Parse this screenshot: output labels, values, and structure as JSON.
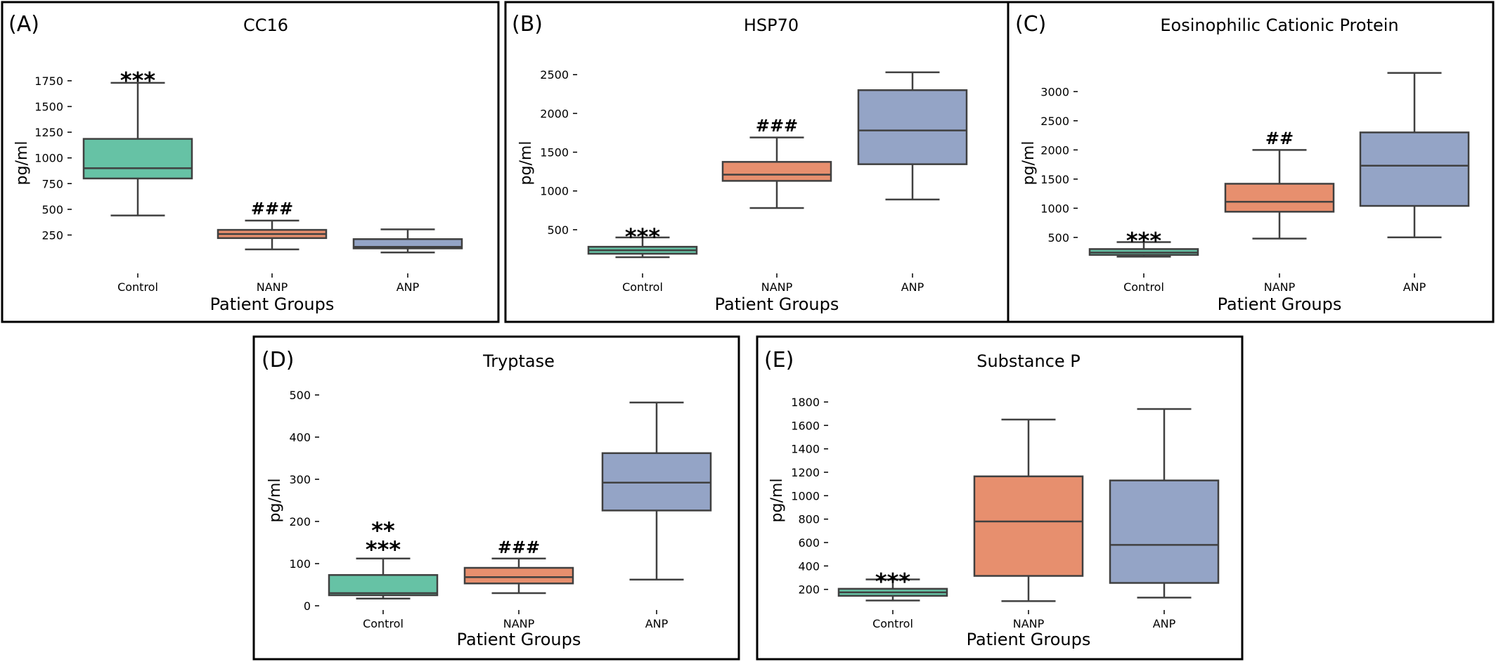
{
  "colors": {
    "Control": "#66c2a5",
    "NANP": "#e78f6e",
    "ANP": "#94a4c6"
  },
  "chart_data": [
    {
      "type": "box",
      "letter": "(A)",
      "title": "CC16",
      "xlabel": "Patient Groups",
      "ylabel": "pg/ml",
      "ylim": [
        0,
        1900
      ],
      "yticks": [
        250,
        500,
        750,
        1000,
        1250,
        1500,
        1750
      ],
      "categories": [
        "Control",
        "NANP",
        "ANP"
      ],
      "boxes": [
        {
          "group": "Control",
          "whislo": 440,
          "q1": 800,
          "med": 900,
          "q3": 1185,
          "whishi": 1730
        },
        {
          "group": "NANP",
          "whislo": 110,
          "q1": 220,
          "med": 260,
          "q3": 300,
          "whishi": 390
        },
        {
          "group": "ANP",
          "whislo": 80,
          "q1": 120,
          "med": 135,
          "q3": 210,
          "whishi": 305
        }
      ],
      "annotations": [
        {
          "text": "***",
          "category": "Control",
          "y": 1800
        },
        {
          "text": "###",
          "category": "NANP",
          "y": 450
        }
      ]
    },
    {
      "type": "box",
      "letter": "(B)",
      "title": "HSP70",
      "xlabel": "Patient Groups",
      "ylabel": "pg/ml",
      "ylim": [
        100,
        2620
      ],
      "yticks": [
        500,
        1000,
        1500,
        2000,
        2500
      ],
      "categories": [
        "Control",
        "NANP",
        "ANP"
      ],
      "boxes": [
        {
          "group": "Control",
          "whislo": 145,
          "q1": 190,
          "med": 235,
          "q3": 280,
          "whishi": 400
        },
        {
          "group": "NANP",
          "whislo": 780,
          "q1": 1130,
          "med": 1210,
          "q3": 1375,
          "whishi": 1690
        },
        {
          "group": "ANP",
          "whislo": 890,
          "q1": 1345,
          "med": 1780,
          "q3": 2300,
          "whishi": 2530
        }
      ],
      "annotations": [
        {
          "text": "***",
          "category": "Control",
          "y": 470
        },
        {
          "text": "###",
          "category": "NANP",
          "y": 1770
        }
      ]
    },
    {
      "type": "box",
      "letter": "(C)",
      "title": "Eosinophilic Cationic Protein",
      "xlabel": "Patient Groups",
      "ylabel": "pg/ml",
      "ylim": [
        100,
        3450
      ],
      "yticks": [
        500,
        1000,
        1500,
        2000,
        2500,
        3000
      ],
      "categories": [
        "Control",
        "NANP",
        "ANP"
      ],
      "boxes": [
        {
          "group": "Control",
          "whislo": 170,
          "q1": 200,
          "med": 240,
          "q3": 300,
          "whishi": 420
        },
        {
          "group": "NANP",
          "whislo": 480,
          "q1": 940,
          "med": 1110,
          "q3": 1420,
          "whishi": 2000
        },
        {
          "group": "ANP",
          "whislo": 500,
          "q1": 1040,
          "med": 1730,
          "q3": 2300,
          "whishi": 3320
        }
      ],
      "annotations": [
        {
          "text": "***",
          "category": "Control",
          "y": 530
        },
        {
          "text": "##",
          "category": "NANP",
          "y": 2100
        }
      ]
    },
    {
      "type": "box",
      "letter": "(D)",
      "title": "Tryptase",
      "xlabel": "Patient Groups",
      "ylabel": "pg/ml",
      "ylim": [
        0,
        500
      ],
      "yticks": [
        0,
        100,
        200,
        300,
        400,
        500
      ],
      "categories": [
        "Control",
        "NANP",
        "ANP"
      ],
      "boxes": [
        {
          "group": "Control",
          "whislo": 17,
          "q1": 25,
          "med": 30,
          "q3": 73,
          "whishi": 112
        },
        {
          "group": "NANP",
          "whislo": 30,
          "q1": 53,
          "med": 68,
          "q3": 90,
          "whishi": 112
        },
        {
          "group": "ANP",
          "whislo": 62,
          "q1": 226,
          "med": 292,
          "q3": 362,
          "whishi": 482
        }
      ],
      "annotations": [
        {
          "text": "**",
          "category": "Control",
          "y": 190
        },
        {
          "text": "***",
          "category": "Control",
          "y": 145
        },
        {
          "text": "###",
          "category": "NANP",
          "y": 125
        }
      ]
    },
    {
      "type": "box",
      "letter": "(E)",
      "title": "Substance P",
      "xlabel": "Patient Groups",
      "ylabel": "pg/ml",
      "ylim": [
        60,
        1860
      ],
      "yticks": [
        200,
        400,
        600,
        800,
        1000,
        1200,
        1400,
        1600,
        1800
      ],
      "categories": [
        "Control",
        "NANP",
        "ANP"
      ],
      "boxes": [
        {
          "group": "Control",
          "whislo": 105,
          "q1": 145,
          "med": 175,
          "q3": 205,
          "whishi": 285
        },
        {
          "group": "NANP",
          "whislo": 100,
          "q1": 315,
          "med": 780,
          "q3": 1165,
          "whishi": 1650
        },
        {
          "group": "ANP",
          "whislo": 130,
          "q1": 255,
          "med": 580,
          "q3": 1130,
          "whishi": 1740
        }
      ],
      "annotations": [
        {
          "text": "***",
          "category": "Control",
          "y": 310
        }
      ]
    }
  ]
}
